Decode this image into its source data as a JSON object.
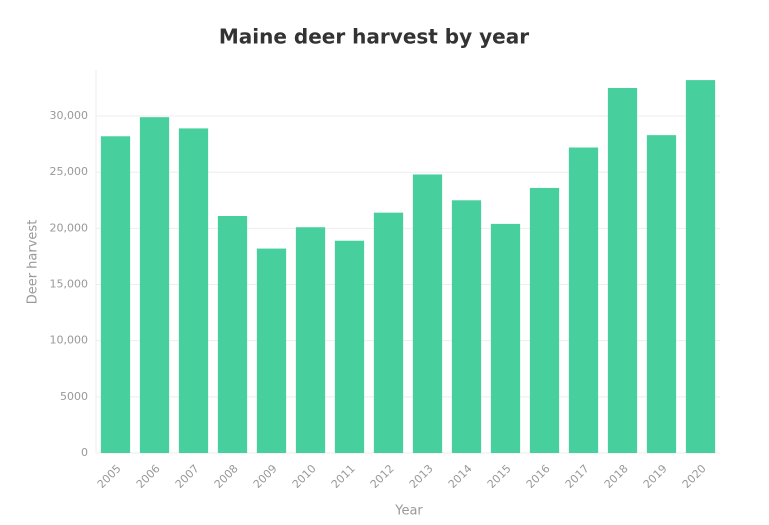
{
  "chart_data": {
    "type": "bar",
    "title": "Maine deer harvest by year",
    "x_label": "Year",
    "y_label": "Deer harvest",
    "categories": [
      "2005",
      "2006",
      "2007",
      "2008",
      "2009",
      "2010",
      "2011",
      "2012",
      "2013",
      "2014",
      "2015",
      "2016",
      "2017",
      "2018",
      "2019",
      "2020"
    ],
    "values": [
      28200,
      29900,
      28900,
      21100,
      18200,
      20100,
      18900,
      21400,
      24800,
      22500,
      20400,
      23600,
      27200,
      32500,
      28300,
      33200
    ],
    "color": "#48cf9e",
    "ylim": [
      0,
      34100
    ],
    "yticks": [
      0,
      5000,
      {
        "value": 10000,
        "label": "10,000"
      },
      {
        "value": 15000,
        "label": "15,000"
      },
      {
        "value": 20000,
        "label": "20,000"
      },
      {
        "value": 25000,
        "label": "25,000"
      },
      {
        "value": 30000,
        "label": "30,000"
      }
    ],
    "grid": true
  }
}
